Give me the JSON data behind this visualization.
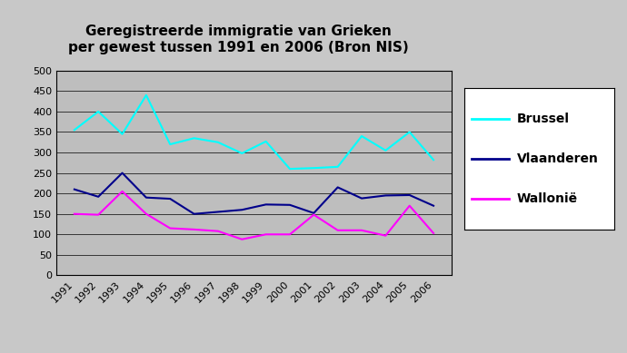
{
  "title": "Geregistreerde immigratie van Grieken\nper gewest tussen 1991 en 2006 (Bron NIS)",
  "years": [
    1991,
    1992,
    1993,
    1994,
    1995,
    1996,
    1997,
    1998,
    1999,
    2000,
    2001,
    2002,
    2003,
    2004,
    2005,
    2006
  ],
  "brussel": [
    355,
    400,
    345,
    440,
    320,
    335,
    325,
    298,
    327,
    260,
    262,
    265,
    340,
    305,
    350,
    282
  ],
  "vlaanderen": [
    210,
    192,
    250,
    190,
    187,
    150,
    155,
    160,
    173,
    172,
    152,
    215,
    188,
    195,
    196,
    170
  ],
  "wallonie": [
    150,
    148,
    205,
    150,
    115,
    112,
    108,
    88,
    100,
    100,
    148,
    110,
    110,
    97,
    170,
    103
  ],
  "brussel_color": "#00FFFF",
  "vlaanderen_color": "#00008B",
  "wallonie_color": "#FF00FF",
  "ylim": [
    0,
    500
  ],
  "yticks": [
    0,
    50,
    100,
    150,
    200,
    250,
    300,
    350,
    400,
    450,
    500
  ],
  "bg_plot": "#BEBEBE",
  "bg_figure": "#C8C8C8",
  "title_fontsize": 11,
  "tick_fontsize": 8,
  "legend_fontsize": 10,
  "legend_labels": [
    "Brussel",
    "Vlaanderen",
    "Wallonië"
  ]
}
